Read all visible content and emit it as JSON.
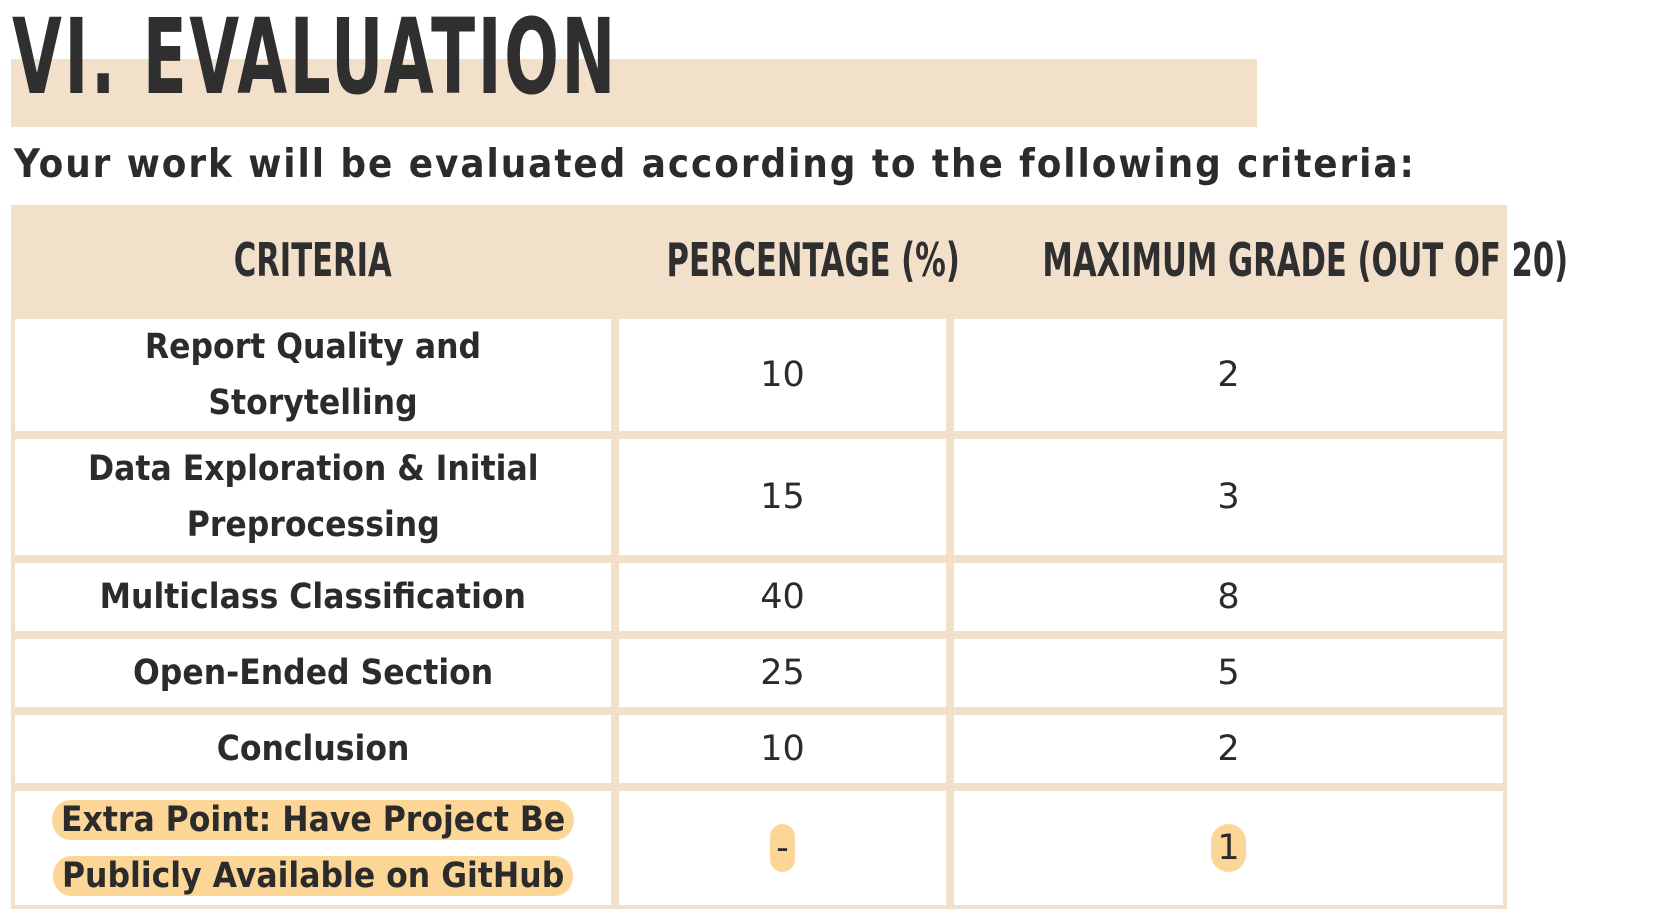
{
  "title": "VI. EVALUATION",
  "subtitle": "Your work will be evaluated according to the following criteria:",
  "table": {
    "headers": [
      "CRITERIA",
      "PERCENTAGE (%)",
      "MAXIMUM GRADE (OUT OF 20)"
    ],
    "rows": [
      {
        "criteria": "Report Quality and Storytelling",
        "percentage": "10",
        "grade": "2"
      },
      {
        "criteria_line1": "Data Exploration & Initial",
        "criteria_line2": "Preprocessing",
        "percentage": "15",
        "grade": "3"
      },
      {
        "criteria": "Multiclass Classification",
        "percentage": "40",
        "grade": "8"
      },
      {
        "criteria": "Open-Ended Section",
        "percentage": "25",
        "grade": "5"
      },
      {
        "criteria": "Conclusion",
        "percentage": "10",
        "grade": "2"
      },
      {
        "criteria_line1": "Extra Point: Have Project Be",
        "criteria_line2": "Publicly Available on GitHub",
        "percentage": "-",
        "grade": "1"
      }
    ]
  },
  "colors": {
    "band": "#f2e0cb",
    "highlight": "#fcd697",
    "text": "#2f2f2f"
  }
}
